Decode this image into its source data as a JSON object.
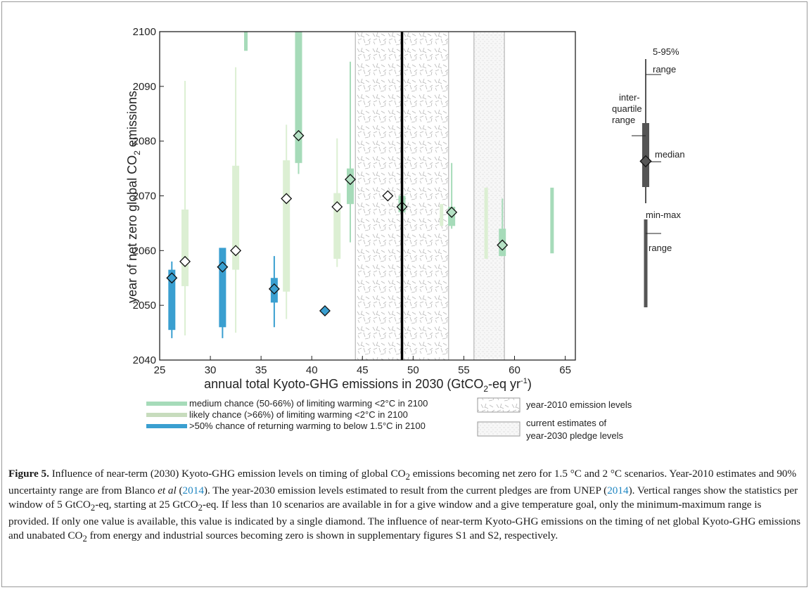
{
  "chart_data": {
    "type": "box",
    "xlabel_main": "annual total Kyoto-GHG emissions in 2030 (GtCO",
    "xlabel_sub": "2",
    "xlabel_tail": "-eq yr",
    "xlabel_sup": "-1",
    "xlabel_close": ")",
    "ylabel_main": "year of net zero global CO",
    "ylabel_sub": "2",
    "ylabel_tail": " emissions",
    "xlim": [
      25,
      66
    ],
    "ylim": [
      2040,
      2100
    ],
    "xticks": [
      "25",
      "30",
      "35",
      "40",
      "45",
      "50",
      "55",
      "60",
      "65"
    ],
    "yticks": [
      "2040",
      "2050",
      "2060",
      "2070",
      "2080",
      "2090",
      "2100"
    ],
    "colors": {
      "medium": "#a6dbb9",
      "likely": "#dcefd3",
      "blue": "#3a9fd0",
      "key": "#555555"
    },
    "reference": {
      "year2010_line": 48.9,
      "year2010_band": [
        44.3,
        53.5
      ],
      "pledge_band": [
        56,
        59
      ]
    },
    "series": [
      {
        "name": "medium chance (50-66%) of limiting warming <2°C in 2100",
        "key": "medium",
        "boxes": [
          {
            "x": 33.5,
            "min": 2096.5,
            "max": 2100
          },
          {
            "x": 38.7,
            "min": 2074,
            "max": 2100,
            "q1": 2076,
            "q3": 2100,
            "median": 2081
          },
          {
            "x": 43.8,
            "min": 2061.5,
            "max": 2094.5,
            "q1": 2068.5,
            "q3": 2075,
            "median": 2073
          },
          {
            "x": 48.9,
            "min": 2065,
            "max": 2071.5,
            "q1": 2067,
            "q3": 2070,
            "median": 2068
          },
          {
            "x": 53.8,
            "min": 2064,
            "max": 2076,
            "q1": 2064.5,
            "q3": 2068,
            "median": 2067
          },
          {
            "x": 58.8,
            "min": 2059,
            "max": 2069.5,
            "q1": 2059,
            "q3": 2064,
            "median": 2061
          },
          {
            "x": 63.7,
            "min": 2059.5,
            "max": 2071.5
          }
        ]
      },
      {
        "name": "likely chance (>66%) of limiting warming <2°C in 2100",
        "key": "likely",
        "boxes": [
          {
            "x": 27.5,
            "min": 2044.5,
            "max": 2091,
            "q1": 2053.5,
            "q3": 2067.5,
            "median": 2058
          },
          {
            "x": 32.5,
            "min": 2045,
            "max": 2093.5,
            "q1": 2056.5,
            "q3": 2075.5,
            "median": 2060
          },
          {
            "x": 37.5,
            "min": 2047.5,
            "max": 2083,
            "q1": 2052.5,
            "q3": 2076.5,
            "median": 2069.5
          },
          {
            "x": 42.5,
            "min": 2057,
            "max": 2080.5,
            "q1": 2058.5,
            "q3": 2070.5,
            "median": 2068
          },
          {
            "x": 47.5,
            "median": 2070
          },
          {
            "x": 52.8,
            "min": 2064.5,
            "max": 2068.5
          },
          {
            "x": 57.2,
            "min": 2058.5,
            "max": 2071.5
          }
        ]
      },
      {
        "name": ">50% chance of returning warming to below 1.5°C in 2100",
        "key": "blue",
        "boxes": [
          {
            "x": 26.2,
            "min": 2044,
            "max": 2058,
            "q1": 2045.5,
            "q3": 2056.5,
            "median": 2055
          },
          {
            "x": 31.2,
            "min": 2044,
            "max": 2060.5,
            "q1": 2046,
            "q3": 2060.5,
            "median": 2057
          },
          {
            "x": 36.3,
            "min": 2046,
            "max": 2059,
            "q1": 2050.5,
            "q3": 2055,
            "median": 2053
          },
          {
            "x": 41.3,
            "median": 2049
          }
        ]
      }
    ],
    "key_labels": {
      "range": "5-95%",
      "range2": "range",
      "iqr1": "inter-",
      "iqr2": "quartile",
      "iqr3": "range",
      "median": "median",
      "minmax1": "min-max",
      "minmax2": "range"
    },
    "ref_legend": {
      "year2010": "year-2010 emission levels",
      "pledge1": "current estimates of",
      "pledge2": "year-2030 pledge levels"
    }
  },
  "caption": {
    "lead": "Figure 5.",
    "p1": " Influence of near-term (2030) Kyoto-GHG emission levels on timing of global CO",
    "sub1": "2",
    "p2": " emissions becoming net zero for 1.5 °C and 2 °C scenarios. Year-2010 estimates and 90% uncertainty range are from Blanco ",
    "etal": "et al",
    "p3": " (",
    "ref1": "2014",
    "p4": "). The year-2030 emission levels estimated to result from the current pledges are from UNEP (",
    "ref2": "2014",
    "p5": "). Vertical ranges show the statistics per window of 5 GtCO",
    "sub2": "2",
    "p6": "-eq, starting at 25 GtCO",
    "sub3": "2",
    "p7": "-eq. If less than 10 scenarios are available in for a give window and a give temperature goal, only the minimum-maximum range is provided. If only one value is available, this value is indicated by a single diamond. The influence of near-term Kyoto-GHG emissions on the timing of net global Kyoto-GHG emissions and unabated CO",
    "sub4": "2",
    "p8": " from energy and industrial sources becoming zero is shown in supplementary figures S1 and S2, respectively."
  }
}
